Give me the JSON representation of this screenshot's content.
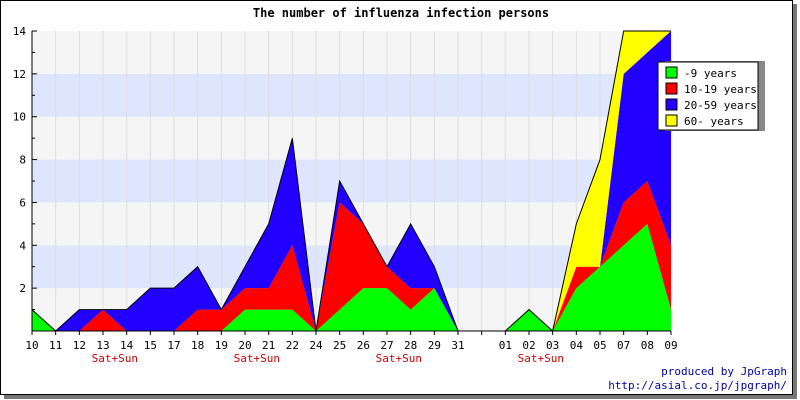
{
  "chart_data": {
    "type": "area",
    "stacked": true,
    "title": "The number of influenza infection persons",
    "xlabel": "",
    "ylabel": "",
    "ylim": [
      0,
      14
    ],
    "yticks": [
      2,
      4,
      6,
      8,
      10,
      12,
      14
    ],
    "grid": true,
    "legend_position": "top-right",
    "categories": [
      "10",
      "11",
      "12",
      "13",
      "14",
      "15",
      "17",
      "18",
      "19",
      "20",
      "21",
      "22",
      "24",
      "25",
      "26",
      "27",
      "28",
      "29",
      "31",
      "",
      "01",
      "02",
      "03",
      "04",
      "05",
      "07",
      "08",
      "09"
    ],
    "weekend_label": "Sat+Sun",
    "weekend_after": [
      "13",
      "20",
      "27",
      "02"
    ],
    "series": [
      {
        "name": "-9 years",
        "color": "#00ff00",
        "values": [
          1,
          0,
          0,
          0,
          0,
          0,
          0,
          0,
          0,
          1,
          1,
          1,
          0,
          1,
          2,
          2,
          1,
          2,
          0,
          0,
          0,
          1,
          0,
          2,
          3,
          4,
          5,
          1
        ]
      },
      {
        "name": "10-19 years",
        "color": "#ff0000",
        "values": [
          0,
          0,
          0,
          1,
          0,
          0,
          0,
          1,
          1,
          1,
          1,
          3,
          0,
          5,
          3,
          1,
          1,
          0,
          0,
          0,
          0,
          0,
          0,
          1,
          0,
          2,
          2,
          3
        ]
      },
      {
        "name": "20-59 years",
        "color": "#2200ff",
        "values": [
          0,
          0,
          1,
          0,
          1,
          2,
          2,
          2,
          0,
          1,
          3,
          5,
          0,
          1,
          0,
          0,
          3,
          1,
          0,
          0,
          0,
          0,
          0,
          0,
          0,
          6,
          6,
          10
        ]
      },
      {
        "name": "60- years",
        "color": "#ffff00",
        "values": [
          0,
          0,
          0,
          0,
          0,
          0,
          0,
          0,
          0,
          0,
          0,
          0,
          0,
          0,
          0,
          0,
          0,
          0,
          0,
          0,
          0,
          0,
          0,
          2,
          5,
          2,
          1,
          0
        ]
      }
    ]
  },
  "credit": {
    "line1": "produced by JpGraph",
    "line2": "http://asial.co.jp/jpgraph/"
  }
}
